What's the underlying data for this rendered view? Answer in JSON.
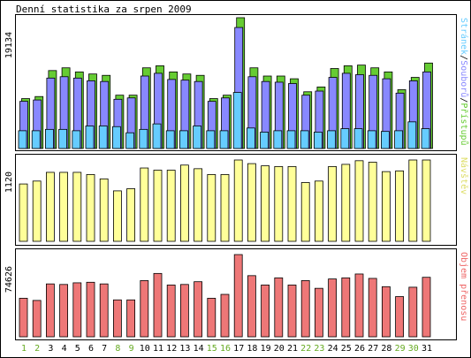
{
  "chart_data": {
    "type": "bar",
    "title": "Denní statistika za srpen 2009",
    "categories": [
      "1",
      "2",
      "3",
      "4",
      "5",
      "6",
      "7",
      "8",
      "9",
      "10",
      "11",
      "12",
      "13",
      "14",
      "15",
      "16",
      "17",
      "18",
      "19",
      "20",
      "21",
      "22",
      "23",
      "24",
      "25",
      "26",
      "27",
      "28",
      "29",
      "30",
      "31"
    ],
    "weekend_days": [
      "1",
      "2",
      "8",
      "9",
      "15",
      "16",
      "22",
      "23",
      "29",
      "30"
    ],
    "panels": [
      {
        "id": "top",
        "ymax": 19134,
        "ytick_label": "19134",
        "side_label_parts": [
          {
            "text": "Stránek",
            "color": "#66ccff"
          },
          {
            "text": "/",
            "color": "#000000"
          },
          {
            "text": "Souborů",
            "color": "#8888ff"
          },
          {
            "text": "/",
            "color": "#000000"
          },
          {
            "text": "Přístupů",
            "color": "#66cc33"
          }
        ],
        "series": [
          {
            "name": "Přístupů",
            "color": "#66cc33",
            "values": [
              7300,
              7600,
              11400,
              11800,
              11200,
              10900,
              10700,
              7800,
              7800,
              11800,
              12100,
              11200,
              10900,
              10700,
              7300,
              7800,
              19134,
              11800,
              10600,
              10600,
              10200,
              8300,
              9000,
              11700,
              12100,
              12200,
              11800,
              11200,
              8600,
              10400,
              12500
            ]
          },
          {
            "name": "Souborů",
            "color": "#8888ff",
            "values": [
              6900,
              7100,
              10300,
              10500,
              10300,
              9900,
              9800,
              7200,
              7400,
              10600,
              11000,
              10100,
              10000,
              9800,
              6900,
              7400,
              17700,
              10500,
              9800,
              9700,
              9500,
              7800,
              8400,
              10400,
              11000,
              10800,
              10700,
              10200,
              8100,
              9900,
              11200
            ]
          },
          {
            "name": "Stránek",
            "color": "#66ccff",
            "values": [
              2600,
              2600,
              2800,
              2800,
              2600,
              3300,
              3300,
              3200,
              2300,
              2800,
              3600,
              2600,
              2600,
              3300,
              2600,
              2600,
              8200,
              3000,
              2400,
              2600,
              2600,
              2600,
              2400,
              2600,
              2900,
              2900,
              2600,
              2500,
              2600,
              3900,
              2900
            ]
          }
        ]
      },
      {
        "id": "mid",
        "ymax": 1120,
        "ytick_label": "1120",
        "side_label_parts": [
          {
            "text": "Návštěv",
            "color": "#dddd66"
          }
        ],
        "series": [
          {
            "name": "Návštěv",
            "color": "#ffff99",
            "values": [
              790,
              830,
              950,
              950,
              950,
              920,
              860,
              695,
              725,
              1010,
              980,
              980,
              1050,
              1000,
              920,
              920,
              1120,
              1070,
              1040,
              1030,
              1030,
              810,
              830,
              1030,
              1060,
              1110,
              1090,
              960,
              970,
              1120,
              1120
            ]
          }
        ]
      },
      {
        "id": "bot",
        "ymax": 74626,
        "ytick_label": "74626",
        "side_label_parts": [
          {
            "text": "Objem přenosu",
            "color": "#ee6666"
          }
        ],
        "series": [
          {
            "name": "Objem přenosu",
            "color": "#ee7777",
            "values": [
              35000,
              33000,
              48000,
              47500,
              49000,
              49500,
              48000,
              33500,
              33500,
              51000,
              57500,
              47000,
              47500,
              50000,
              35000,
              38500,
              74626,
              55500,
              47000,
              53500,
              47000,
              51000,
              44000,
              52500,
              53500,
              57000,
              53000,
              45500,
              36500,
              45000,
              54000
            ]
          }
        ]
      }
    ]
  }
}
